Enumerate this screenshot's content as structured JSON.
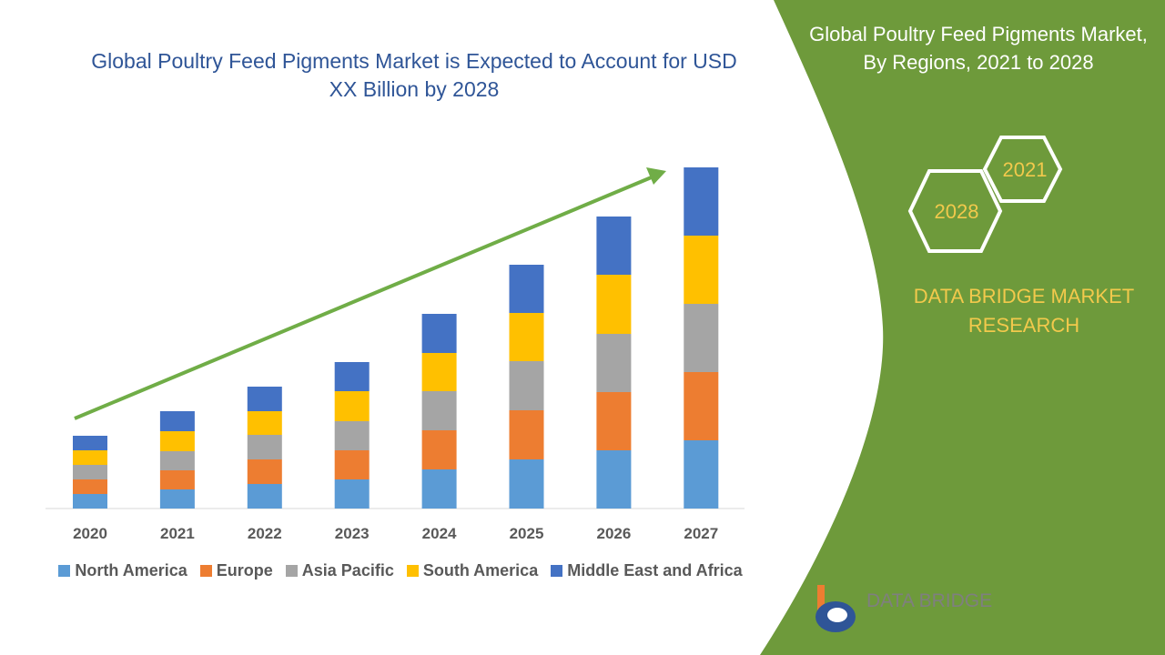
{
  "chart_data": {
    "type": "bar",
    "stacked": true,
    "title": "Global Poultry Feed Pigments Market is Expected to Account for USD XX Billion by 2028",
    "categories": [
      "2020",
      "2021",
      "2022",
      "2023",
      "2024",
      "2025",
      "2026",
      "2027"
    ],
    "series": [
      {
        "name": "North America",
        "color": "#5b9bd5",
        "values": [
          16,
          21,
          27,
          32,
          43,
          54,
          64,
          75
        ]
      },
      {
        "name": "Europe",
        "color": "#ed7d31",
        "values": [
          16,
          21,
          27,
          32,
          43,
          54,
          64,
          75
        ]
      },
      {
        "name": "Asia Pacific",
        "color": "#a5a5a5",
        "values": [
          16,
          21,
          27,
          32,
          43,
          54,
          64,
          75
        ]
      },
      {
        "name": "South America",
        "color": "#ffc000",
        "values": [
          16,
          22,
          26,
          33,
          42,
          53,
          65,
          75
        ]
      },
      {
        "name": "Middle East and Africa",
        "color": "#4472c4",
        "values": [
          16,
          22,
          27,
          32,
          43,
          53,
          64,
          75
        ]
      }
    ]
  },
  "panel": {
    "title": "Global Poultry Feed Pigments Market, By Regions, 2021 to 2028",
    "hex_top": "2021",
    "hex_bottom": "2028",
    "brand": "DATA BRIDGE MARKET RESEARCH",
    "logo": "DATA BRIDGE"
  }
}
